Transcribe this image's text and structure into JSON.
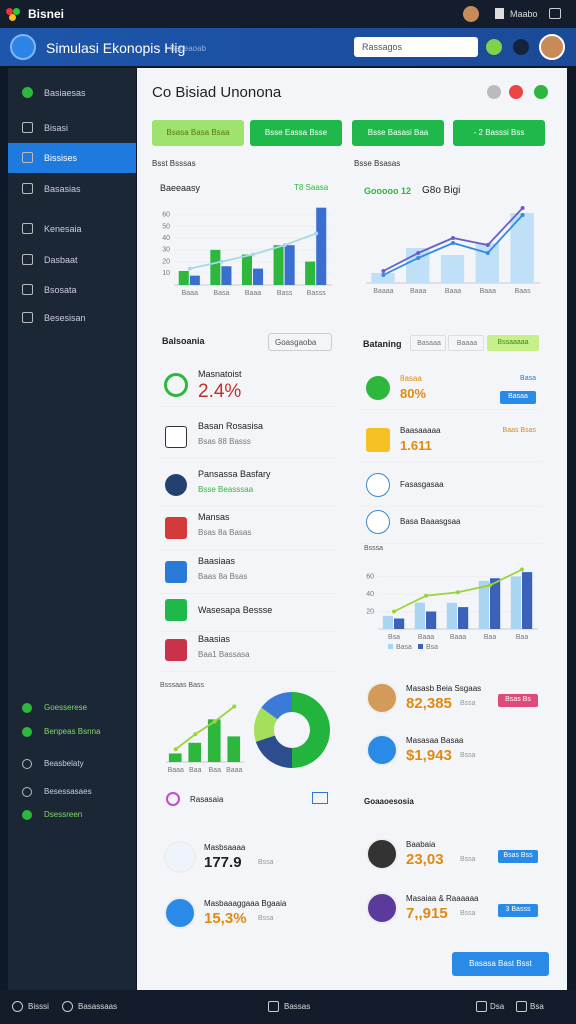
{
  "topbar": {
    "app": "Bisnei",
    "user": "Maabo"
  },
  "header": {
    "title": "Simulasi Ekonopis Hig",
    "subtitle": "Bsoeaoab",
    "search": "Rassagos"
  },
  "sidebar": {
    "items": [
      "Basiaesas",
      "Bisasi",
      "Bissises",
      "Basasias",
      "Kenesaia",
      "Dasbaat",
      "Bsosata",
      "Besesisan"
    ],
    "active": 2,
    "bottom_items": [
      "Goesserese",
      "Benpeas Bsnna",
      "Beasbelaty",
      "Besessasaes",
      "Dsessreen"
    ]
  },
  "main": {
    "title": "Co Bisiad Unonona",
    "buttons": [
      "Bsasa Basa Bsaa",
      "Bsse Eassa Bsse",
      "Bsse Basasi Baa",
      "- 2 Basssi Bss"
    ],
    "section_left": "Bsst Bsssas",
    "section_right": "Bsse Bsasas"
  },
  "chart_data": [
    {
      "type": "bar",
      "title": "Baeeaasy",
      "subtitle": "T8 Saasa",
      "categories": [
        "Baaa",
        "Basa",
        "Baaa",
        "Bass",
        "Basss"
      ],
      "series": [
        {
          "type": "bar",
          "color": "#2db83d",
          "values": [
            12,
            30,
            26,
            34,
            20
          ]
        },
        {
          "type": "bar",
          "color": "#3a6fd0",
          "values": [
            8,
            16,
            14,
            34,
            66
          ]
        },
        {
          "type": "line",
          "color": "#a8d8e8",
          "values": [
            14,
            20,
            26,
            34,
            44
          ]
        }
      ],
      "ylim": [
        0,
        70
      ],
      "yticks": [
        10,
        20,
        30,
        40,
        50,
        60
      ]
    },
    {
      "type": "bar",
      "title": "Gooooo 12",
      "subtitle": "G8o Bigi",
      "categories": [
        "Baaaa",
        "Baaa",
        "Baaa",
        "Baaa",
        "Baas"
      ],
      "series": [
        {
          "type": "bar",
          "color": "#bfe0f6",
          "values": [
            10,
            35,
            28,
            40,
            70
          ]
        },
        {
          "type": "line",
          "color": "#6a5fc8",
          "values": [
            12,
            30,
            45,
            38,
            75
          ]
        },
        {
          "type": "line",
          "color": "#2f8de0",
          "values": [
            8,
            25,
            40,
            30,
            68
          ]
        }
      ],
      "ylim": [
        0,
        90
      ]
    },
    {
      "type": "bar",
      "title": "Bsssa",
      "categories": [
        "Bsa",
        "Baaa",
        "Baaa",
        "Baa",
        "Baa"
      ],
      "series": [
        {
          "type": "bar",
          "name": "Basa",
          "color": "#a9d4f2",
          "values": [
            15,
            30,
            30,
            55,
            60
          ]
        },
        {
          "type": "bar",
          "name": "Bsa",
          "color": "#3a62b8",
          "values": [
            12,
            20,
            25,
            58,
            65
          ]
        },
        {
          "type": "line",
          "color": "#9ad43a",
          "values": [
            20,
            38,
            42,
            50,
            68
          ]
        }
      ],
      "ylim": [
        0,
        80
      ],
      "yticks": [
        20,
        40,
        60
      ]
    },
    {
      "type": "bar",
      "title": "Bsssaas Bass",
      "categories": [
        "Baaa",
        "Baa",
        "Baa",
        "Baaa"
      ],
      "series": [
        {
          "type": "bar",
          "color": "#2db83d",
          "values": [
            8,
            18,
            40,
            24
          ]
        },
        {
          "type": "line",
          "color": "#9ad43a",
          "values": [
            12,
            26,
            38,
            52
          ]
        }
      ],
      "ylim": [
        0,
        60
      ]
    },
    {
      "type": "pie",
      "caption": "Rasasaia",
      "values": [
        50,
        20,
        15,
        15
      ],
      "colors": [
        "#22b43c",
        "#2d4e8e",
        "#a5e05a",
        "#3c7ad8"
      ]
    }
  ],
  "overview": {
    "title": "Balsoania",
    "button": "Goasgaoba",
    "items": [
      {
        "title": "Masnatoist",
        "value": "2.4%"
      },
      {
        "title": "Basan Rosasisa",
        "sub": "Bsas 88 Basss"
      },
      {
        "title": "Pansassa Basfary",
        "sub": "Bsse Beasssaa"
      },
      {
        "title": "Mansas",
        "sub": "Bsas 8a Basas"
      },
      {
        "title": "Baasiaas",
        "sub": "Baas 8a Bsas"
      },
      {
        "title": "Wasesapa Bessse"
      },
      {
        "title": "Baasias",
        "sub": "Baa1 Bassasa"
      }
    ]
  },
  "ranking": {
    "title": "Bataning",
    "tabs": [
      "Basaaa",
      "Baaaa",
      "Bssaaaaa"
    ],
    "items": [
      {
        "title": "8asaa",
        "value": "80%",
        "note": "Basa",
        "tag": "Basaa"
      },
      {
        "title": "Baasaaaaa",
        "value": "1.611",
        "note": "Baas Bsas"
      },
      {
        "title": "Fasasgasaa"
      },
      {
        "title": "Basa Baaasgsaa"
      }
    ]
  },
  "people": {
    "items": [
      {
        "title": "Masasb Beia Ssgaas",
        "value": "82,385",
        "note": "Bssa",
        "tag": "Bsas Bs"
      },
      {
        "title": "Masasaa Basaa",
        "value": "$1,943",
        "note": "Bssa"
      }
    ]
  },
  "growth": {
    "title": "Goaaoesosia",
    "items": [
      {
        "title": "Baabaia",
        "value": "23,03",
        "note": "Bssa",
        "tag": "Bsas Bss"
      },
      {
        "title": "Masaiaa & Raaaaaa",
        "value": "7,,915",
        "note": "Bssa",
        "tag": "3 Basss"
      }
    ]
  },
  "summary": {
    "items": [
      {
        "title": "Masbsaaaa",
        "value": "177.9",
        "note": "Bssa"
      },
      {
        "title": "Masbaaaggaaa Bgaaia",
        "value": "15,3%",
        "note": "Bssa"
      }
    ]
  },
  "action": "Basasa Bast Bsst",
  "footer": [
    "Bisssi",
    "Basassaas",
    "Bassas",
    "Dsa",
    "Bsa"
  ]
}
